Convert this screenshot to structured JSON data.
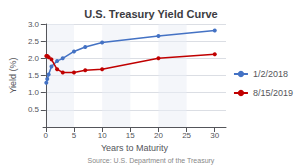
{
  "chart_data": {
    "type": "line",
    "title": "U.S. Treasury Yield Curve",
    "xlabel": "Years to Maturity",
    "ylabel": "Yield (%)",
    "annotation": "Source: U.S. Department of the Treasury",
    "x": [
      0.08,
      0.25,
      0.5,
      1,
      2,
      3,
      5,
      7,
      10,
      20,
      30
    ],
    "series": [
      {
        "name": "1/2/2018",
        "color": "#4472C4",
        "values": [
          1.29,
          1.4,
          1.53,
          1.76,
          1.92,
          2.0,
          2.2,
          2.33,
          2.46,
          2.65,
          2.81
        ]
      },
      {
        "name": "8/15/2019",
        "color": "#C00000",
        "values": [
          2.07,
          2.07,
          2.03,
          1.97,
          1.68,
          1.59,
          1.59,
          1.65,
          1.68,
          2.0,
          2.12
        ]
      }
    ],
    "xlim": [
      -0.5,
      32
    ],
    "xticks": [
      0,
      5,
      10,
      15,
      20,
      25,
      30
    ],
    "ylim": [
      0,
      3.0
    ],
    "yticks": [
      0.5,
      {
        "value": 1,
        "label": "1.0"
      },
      1.5,
      {
        "value": 2,
        "label": "2.0"
      },
      2.5,
      {
        "value": 3,
        "label": "3.0"
      }
    ],
    "grid": true,
    "legend": "right",
    "marker": "circle"
  }
}
